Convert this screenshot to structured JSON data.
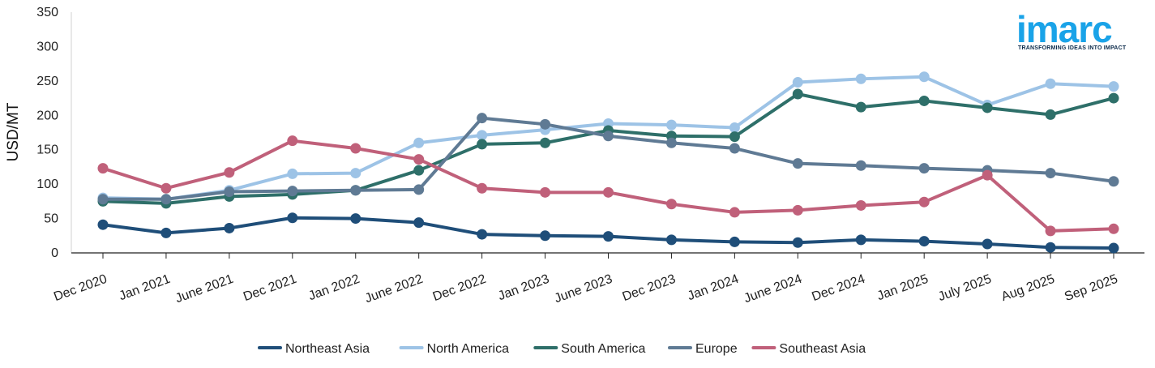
{
  "logo": {
    "name": "imarc",
    "tagline": "TRANSFORMING IDEAS INTO IMPACT"
  },
  "chart_data": {
    "type": "line",
    "title": "",
    "xlabel": "",
    "ylabel": "USD/MT",
    "ylim": [
      0,
      350
    ],
    "yticks": [
      0,
      50,
      100,
      150,
      200,
      250,
      300,
      350
    ],
    "grid": false,
    "legend": "bottom",
    "categories": [
      "Dec 2020",
      "Jan 2021",
      "June 2021",
      "Dec 2021",
      "Jan 2022",
      "June 2022",
      "Dec 2022",
      "Jan 2023",
      "June 2023",
      "Dec 2023",
      "Jan 2024",
      "June 2024",
      "Dec 2024",
      "Jan 2025",
      "July 2025",
      "Aug 2025",
      "Sep 2025"
    ],
    "series": [
      {
        "name": "Northeast Asia",
        "color": "#1f4e79",
        "values": [
          41,
          29,
          36,
          51,
          50,
          44,
          27,
          25,
          24,
          19,
          16,
          15,
          19,
          17,
          13,
          8,
          7
        ]
      },
      {
        "name": "North America",
        "color": "#9dc3e6",
        "values": [
          80,
          78,
          91,
          115,
          116,
          160,
          171,
          179,
          188,
          186,
          182,
          248,
          253,
          256,
          215,
          246,
          242
        ]
      },
      {
        "name": "South America",
        "color": "#2e6f69",
        "values": [
          75,
          72,
          82,
          85,
          91,
          120,
          158,
          160,
          178,
          170,
          169,
          231,
          212,
          221,
          211,
          201,
          225
        ]
      },
      {
        "name": "Europe",
        "color": "#5f7a94",
        "values": [
          78,
          78,
          89,
          90,
          91,
          92,
          196,
          187,
          170,
          160,
          152,
          130,
          127,
          123,
          120,
          116,
          104
        ]
      },
      {
        "name": "Southeast Asia",
        "color": "#c0607a",
        "values": [
          123,
          94,
          117,
          163,
          152,
          136,
          94,
          88,
          88,
          71,
          59,
          62,
          69,
          74,
          113,
          32,
          35
        ]
      }
    ]
  }
}
